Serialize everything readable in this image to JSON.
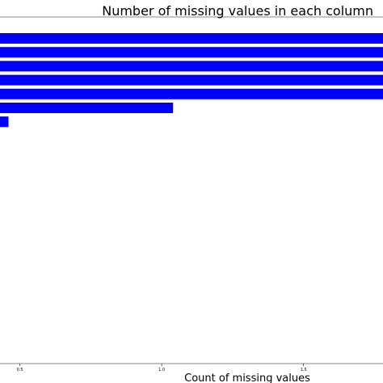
{
  "chart_data": {
    "type": "bar",
    "orientation": "horizontal",
    "title": "Number of missing values in each column",
    "xlabel": "Count of missing values",
    "ylabel": "",
    "xlim": [
      0.43,
      1.78
    ],
    "xticks": [
      0.5,
      1.0,
      1.5
    ],
    "xtick_labels": [
      "0.5",
      "1.0",
      "1.5"
    ],
    "bar_color": "#0000ff",
    "values": [
      1.78,
      1.78,
      1.78,
      1.78,
      1.78,
      1.04,
      0.46
    ],
    "grid": false,
    "legend": "none"
  }
}
